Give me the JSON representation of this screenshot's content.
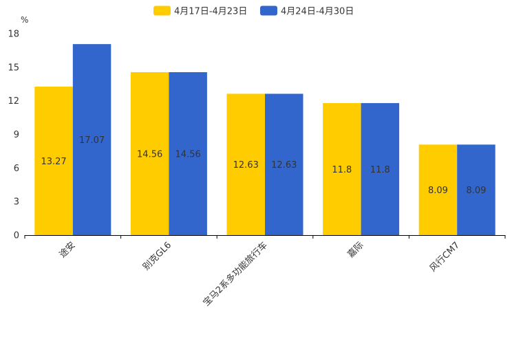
{
  "chart_data": {
    "type": "bar",
    "title": "",
    "xlabel": "",
    "ylabel": "%",
    "ylim": [
      0,
      18
    ],
    "yticks": [
      0,
      3,
      6,
      9,
      12,
      15,
      18
    ],
    "categories": [
      "途安",
      "别克GL6",
      "宝马2系多功能旅行车",
      "嘉际",
      "风行CM7"
    ],
    "series": [
      {
        "name": "4月17日-4月23日",
        "color": "#FFCC00",
        "values": [
          13.27,
          14.56,
          12.63,
          11.8,
          8.09
        ]
      },
      {
        "name": "4月24日-4月30日",
        "color": "#3366CC",
        "values": [
          17.07,
          14.56,
          12.63,
          11.8,
          8.09
        ]
      }
    ],
    "legend_position": "top-center",
    "grid": false
  }
}
